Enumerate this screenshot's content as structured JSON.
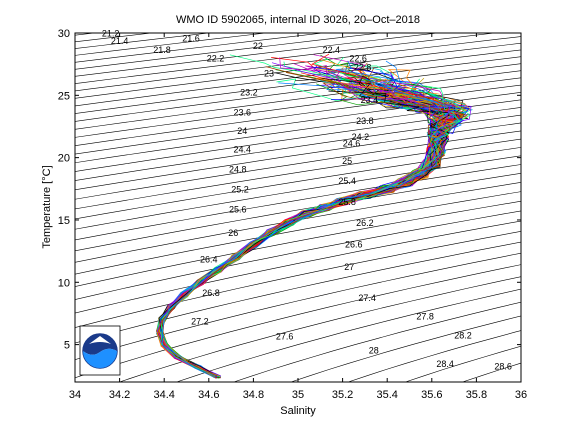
{
  "chart_data": {
    "type": "line",
    "title": "WMO ID 5902065, internal ID 3026, 20–Oct–2018",
    "xlabel": "Salinity",
    "ylabel": "Temperature [°C]",
    "xlim": [
      34,
      36
    ],
    "ylim": [
      2,
      30
    ],
    "x_ticks": [
      "34",
      "34.2",
      "34.4",
      "34.6",
      "34.8",
      "35",
      "35.2",
      "35.4",
      "35.6",
      "35.8",
      "36"
    ],
    "y_ticks": [
      "5",
      "10",
      "15",
      "20",
      "25",
      "30"
    ],
    "grid": false,
    "logo": "noaa-logo",
    "isopycnal_labels": [
      "21.2",
      "21.4",
      "21.6",
      "21.8",
      "22",
      "22.2",
      "22.4",
      "22.6",
      "22.8",
      "23",
      "23.2",
      "23.4",
      "23.6",
      "23.8",
      "24",
      "24.2",
      "24.4",
      "24.6",
      "24.8",
      "25",
      "25.2",
      "25.4",
      "25.6",
      "25.8",
      "26",
      "26.2",
      "26.4",
      "26.6",
      "26.8",
      "27",
      "27.2",
      "27.4",
      "27.6",
      "27.8",
      "28",
      "28.2",
      "28.4",
      "28.6"
    ],
    "isopycnal_label_positions": [
      {
        "label": "21.2",
        "s": 34.16,
        "t": 29.7
      },
      {
        "label": "21.4",
        "s": 34.2,
        "t": 29.1
      },
      {
        "label": "21.6",
        "s": 34.52,
        "t": 29.3
      },
      {
        "label": "21.8",
        "s": 34.39,
        "t": 28.4
      },
      {
        "label": "22",
        "s": 34.82,
        "t": 28.7
      },
      {
        "label": "22.2",
        "s": 34.63,
        "t": 27.7
      },
      {
        "label": "22.4",
        "s": 35.15,
        "t": 28.4
      },
      {
        "label": "22.6",
        "s": 35.27,
        "t": 27.7
      },
      {
        "label": "22.8",
        "s": 35.29,
        "t": 27.0
      },
      {
        "label": "23",
        "s": 34.87,
        "t": 26.5
      },
      {
        "label": "23.2",
        "s": 34.78,
        "t": 25.0
      },
      {
        "label": "23.4",
        "s": 35.32,
        "t": 24.4
      },
      {
        "label": "23.6",
        "s": 34.75,
        "t": 23.4
      },
      {
        "label": "23.8",
        "s": 35.3,
        "t": 22.7
      },
      {
        "label": "24",
        "s": 34.75,
        "t": 21.9
      },
      {
        "label": "24.2",
        "s": 35.28,
        "t": 21.4
      },
      {
        "label": "24.4",
        "s": 34.75,
        "t": 20.4
      },
      {
        "label": "24.6",
        "s": 35.24,
        "t": 20.9
      },
      {
        "label": "24.8",
        "s": 34.73,
        "t": 18.8
      },
      {
        "label": "25",
        "s": 35.22,
        "t": 19.5
      },
      {
        "label": "25.2",
        "s": 34.74,
        "t": 17.2
      },
      {
        "label": "25.4",
        "s": 35.22,
        "t": 17.9
      },
      {
        "label": "25.6",
        "s": 34.73,
        "t": 15.6
      },
      {
        "label": "25.8",
        "s": 35.22,
        "t": 16.2
      },
      {
        "label": "26",
        "s": 34.71,
        "t": 13.7
      },
      {
        "label": "26.2",
        "s": 35.3,
        "t": 14.5
      },
      {
        "label": "26.4",
        "s": 34.6,
        "t": 11.6
      },
      {
        "label": "26.6",
        "s": 35.25,
        "t": 12.8
      },
      {
        "label": "26.8",
        "s": 34.61,
        "t": 8.9
      },
      {
        "label": "27",
        "s": 35.23,
        "t": 11.0
      },
      {
        "label": "27.2",
        "s": 34.56,
        "t": 6.6
      },
      {
        "label": "27.4",
        "s": 35.31,
        "t": 8.5
      },
      {
        "label": "27.6",
        "s": 34.94,
        "t": 5.4
      },
      {
        "label": "27.8",
        "s": 35.57,
        "t": 7.0
      },
      {
        "label": "28",
        "s": 35.34,
        "t": 4.3
      },
      {
        "label": "28.2",
        "s": 35.74,
        "t": 5.5
      },
      {
        "label": "28.4",
        "s": 35.66,
        "t": 3.2
      },
      {
        "label": "28.6",
        "s": 35.92,
        "t": 3.0
      }
    ],
    "mean_profile": {
      "salinity": [
        34.64,
        34.55,
        34.46,
        34.4,
        34.38,
        34.39,
        34.43,
        34.49,
        34.56,
        34.64,
        34.72,
        34.8,
        34.88,
        34.96,
        35.04,
        35.12,
        35.2,
        35.3,
        35.4,
        35.48,
        35.55,
        35.6,
        35.62,
        35.63,
        35.63,
        35.64,
        35.66,
        35.68,
        35.66,
        35.6,
        35.52,
        35.45,
        35.38,
        35.3,
        35.22,
        35.15,
        35.08
      ],
      "temperature": [
        2.4,
        3.2,
        4.0,
        5.0,
        6.0,
        7.0,
        8.0,
        9.0,
        10.0,
        11.0,
        12.0,
        13.0,
        14.0,
        14.8,
        15.5,
        16.0,
        16.5,
        17.0,
        17.5,
        18.0,
        18.7,
        19.5,
        20.5,
        21.5,
        22.0,
        22.3,
        22.8,
        23.3,
        23.8,
        24.2,
        24.6,
        25.0,
        25.5,
        26.0,
        26.5,
        27.0,
        27.5
      ]
    },
    "series_count": 120
  }
}
